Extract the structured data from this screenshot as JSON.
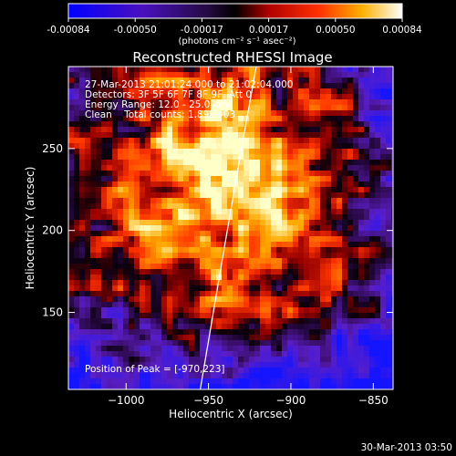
{
  "colorbar": {
    "ticks": [
      "-0.00084",
      "-0.00050",
      "-0.00017",
      "0.00017",
      "0.00050",
      "0.00084"
    ],
    "unit_label": "(photons cm⁻² s⁻¹ asec⁻²)",
    "range": [
      -0.00084,
      0.00084
    ]
  },
  "chart_data": {
    "type": "heatmap",
    "title": "Reconstructed RHESSI Image",
    "xlabel": "Heliocentric X (arcsec)",
    "ylabel": "Heliocentric Y (arcsec)",
    "xlim": [
      -1035,
      -838
    ],
    "ylim": [
      103,
      300
    ],
    "x_ticks": [
      -1000,
      -950,
      -900,
      -850
    ],
    "y_ticks": [
      150,
      200,
      250
    ],
    "x_tick_labels": [
      "−1000",
      "−950",
      "−900",
      "−850"
    ],
    "y_tick_labels": [
      "150",
      "200",
      "250"
    ],
    "info_lines": [
      "27-Mar-2013 21:01:24.000 to 21:02:04.000",
      "Detectors: 3F 5F 6F 7F 8F 9F, Att 0",
      "Energy Range: 12.0 - 25.0 keV",
      "Clean    Total counts: 1.89E+03"
    ],
    "peak_label": "Position of Peak = [-970,223]",
    "peak": [
      -970,
      223
    ],
    "limb_line": [
      [
        -955,
        103
      ],
      [
        -942,
        180
      ],
      [
        -930,
        250
      ],
      [
        -921,
        300
      ]
    ],
    "grid": false,
    "colormap": "blue-purple-black-red-orange-yellow-white"
  },
  "footer": {
    "date": "30-Mar-2013 03:50"
  }
}
